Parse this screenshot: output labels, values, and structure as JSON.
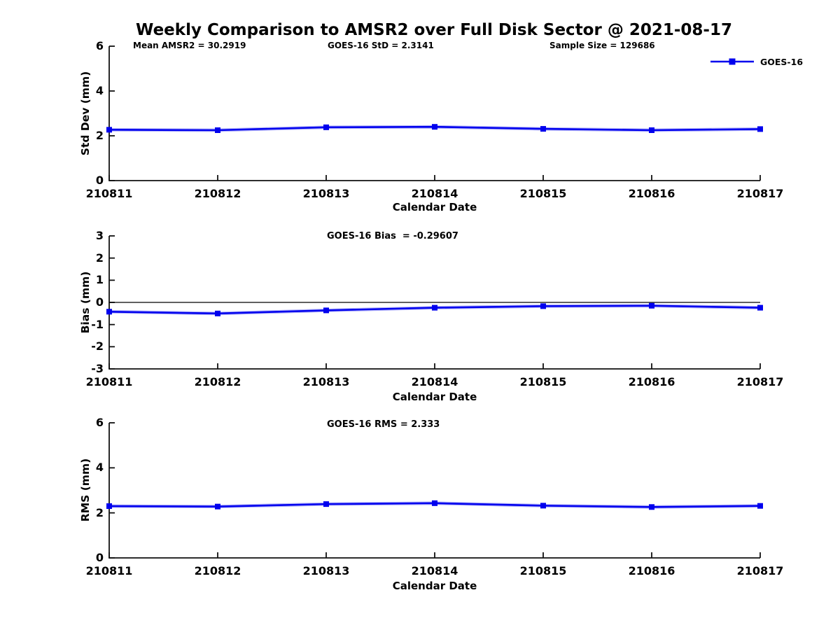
{
  "title": "Weekly Comparison to AMSR2 over Full Disk Sector @ 2021-08-17",
  "series_color": "#0000ee",
  "axis_color": "#111111",
  "legend": {
    "label": "GOES-16"
  },
  "annotations": {
    "mean_amsr2": "Mean AMSR2 = 30.2919",
    "goes16_std": "GOES-16 StD = 2.3141",
    "sample_size": "Sample Size = 129686"
  },
  "chart_data": [
    {
      "type": "line",
      "title": "",
      "ylabel": "Std Dev (mm)",
      "xlabel": "Calendar Date",
      "x": [
        "210811",
        "210812",
        "210813",
        "210814",
        "210815",
        "210816",
        "210817"
      ],
      "series": [
        {
          "name": "GOES-16",
          "values": [
            2.27,
            2.25,
            2.38,
            2.4,
            2.31,
            2.25,
            2.3
          ]
        }
      ],
      "ylim": [
        0,
        6
      ],
      "yticks": [
        0,
        2,
        4,
        6
      ],
      "zero_line": false,
      "grid": false,
      "legend_position": "top-right"
    },
    {
      "type": "line",
      "title": "GOES-16 Bias  = -0.29607",
      "ylabel": "Bias (mm)",
      "xlabel": "Calendar Date",
      "x": [
        "210811",
        "210812",
        "210813",
        "210814",
        "210815",
        "210816",
        "210817"
      ],
      "series": [
        {
          "name": "GOES-16",
          "values": [
            -0.42,
            -0.5,
            -0.36,
            -0.24,
            -0.17,
            -0.15,
            -0.24
          ]
        }
      ],
      "ylim": [
        -3,
        3
      ],
      "yticks": [
        -3,
        -2,
        -1,
        0,
        1,
        2,
        3
      ],
      "zero_line": true,
      "grid": false
    },
    {
      "type": "line",
      "title": "GOES-16 RMS = 2.333",
      "ylabel": "RMS (mm)",
      "xlabel": "Calendar Date",
      "x": [
        "210811",
        "210812",
        "210813",
        "210814",
        "210815",
        "210816",
        "210817"
      ],
      "series": [
        {
          "name": "GOES-16",
          "values": [
            2.3,
            2.28,
            2.39,
            2.43,
            2.32,
            2.26,
            2.31
          ]
        }
      ],
      "ylim": [
        0,
        6
      ],
      "yticks": [
        0,
        2,
        4,
        6
      ],
      "zero_line": false,
      "grid": false
    }
  ]
}
